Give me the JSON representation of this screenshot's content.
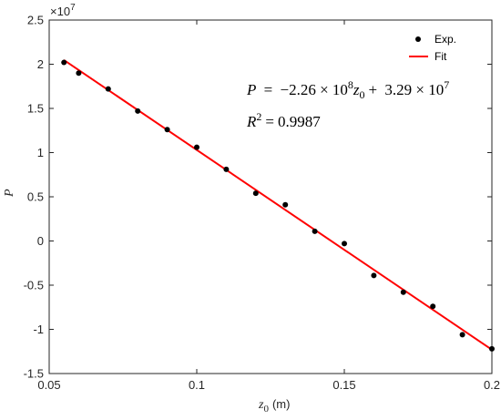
{
  "chart_data": {
    "type": "scatter",
    "title": "",
    "xlabel": "z",
    "xlabel_sub": "0",
    "xlabel_unit": "(m)",
    "ylabel": "P",
    "xlim": [
      0.05,
      0.2
    ],
    "ylim": [
      -1.5,
      2.5
    ],
    "y_exponent_label": "×10",
    "y_exponent_power": "7",
    "x_ticks": [
      "0.05",
      "0.1",
      "0.15",
      "0.2"
    ],
    "x_tick_values": [
      0.05,
      0.1,
      0.15,
      0.2
    ],
    "y_ticks": [
      "-1.5",
      "-1",
      "-0.5",
      "0",
      "0.5",
      "1",
      "1.5",
      "2",
      "2.5"
    ],
    "y_tick_values": [
      -1.5,
      -1,
      -0.5,
      0,
      0.5,
      1,
      1.5,
      2,
      2.5
    ],
    "grid": false,
    "legend_position": "top-right",
    "series": [
      {
        "name": "Exp.",
        "kind": "scatter",
        "color": "#000000",
        "x": [
          0.055,
          0.06,
          0.07,
          0.08,
          0.09,
          0.1,
          0.11,
          0.12,
          0.13,
          0.14,
          0.15,
          0.16,
          0.17,
          0.18,
          0.19,
          0.2
        ],
        "y": [
          2.02,
          1.9,
          1.72,
          1.47,
          1.26,
          1.06,
          0.81,
          0.54,
          0.41,
          0.11,
          -0.03,
          -0.39,
          -0.58,
          -0.74,
          -1.06,
          -1.22
        ]
      },
      {
        "name": "Fit",
        "kind": "line",
        "color": "#ff0000",
        "x": [
          0.055,
          0.2
        ],
        "y": [
          2.047,
          -1.23
        ]
      }
    ],
    "annotations": {
      "equation": {
        "lhs": "P",
        "eq": "=",
        "coef1": "−2.26 × 10",
        "coef1_power": "8",
        "var": "z",
        "var_sub": "0",
        "plus": "+",
        "coef2": "3.29 × 10",
        "coef2_power": "7"
      },
      "r_squared": {
        "label": "R",
        "power": "2",
        "eq": "=",
        "value": "0.9987"
      }
    }
  }
}
